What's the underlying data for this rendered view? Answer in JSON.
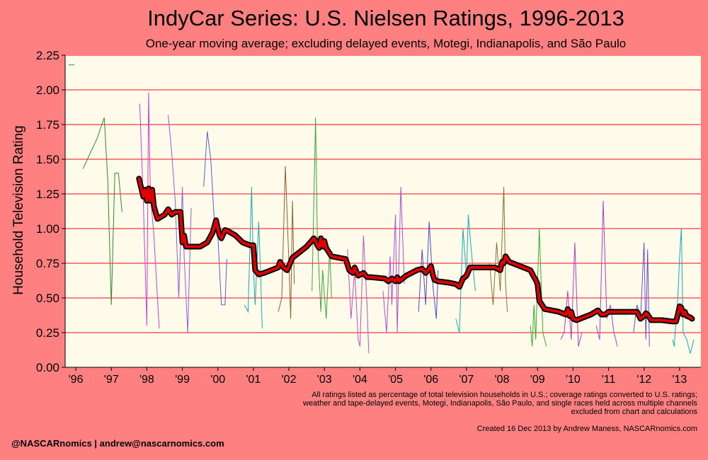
{
  "chart_data": {
    "type": "line",
    "title": "IndyCar Series: U.S. Nielsen Ratings, 1996-2013",
    "subtitle": "One-year moving average; excluding delayed events, Motegi, Indianapolis, and São Paulo",
    "ylabel": "Household Television Rating",
    "xlabel": "",
    "ylim": [
      0,
      2.25
    ],
    "xlim": [
      1995.7,
      2013.6
    ],
    "grid": true,
    "y_ticks": [
      "0.00",
      "0.25",
      "0.50",
      "0.75",
      "1.00",
      "1.25",
      "1.50",
      "1.75",
      "2.00",
      "2.25"
    ],
    "x_ticks": [
      {
        "x": 1996,
        "label": "'96"
      },
      {
        "x": 1997,
        "label": "'97"
      },
      {
        "x": 1998,
        "label": "'98"
      },
      {
        "x": 1999,
        "label": "'99"
      },
      {
        "x": 2000,
        "label": "'00"
      },
      {
        "x": 2001,
        "label": "'01"
      },
      {
        "x": 2002,
        "label": "'02"
      },
      {
        "x": 2003,
        "label": "'03"
      },
      {
        "x": 2004,
        "label": "'04"
      },
      {
        "x": 2005,
        "label": "'05"
      },
      {
        "x": 2006,
        "label": "'06"
      },
      {
        "x": 2007,
        "label": "'07"
      },
      {
        "x": 2008,
        "label": "'08"
      },
      {
        "x": 2009,
        "label": "'09"
      },
      {
        "x": 2010,
        "label": "'10"
      },
      {
        "x": 2011,
        "label": "'11"
      },
      {
        "x": 2012,
        "label": "'12"
      },
      {
        "x": 2013,
        "label": "'13"
      }
    ],
    "colors": {
      "moving_average": "#e00000",
      "moving_average_outline": "#000000",
      "gridline": "#ff8080",
      "plot_bg": "#fffbea"
    },
    "race_series": [
      {
        "color": "#2e8b2e",
        "x": [
          1996.2,
          1996.6,
          1996.8,
          1996.9,
          1997.0,
          1997.1,
          1997.2,
          1997.3
        ],
        "y": [
          1.43,
          1.65,
          1.8,
          1.35,
          0.45,
          1.4,
          1.4,
          1.12
        ]
      },
      {
        "color": "#d040d0",
        "x": [
          1997.8,
          1997.9,
          1998.0,
          1998.05,
          1998.1,
          1998.2,
          1998.3,
          1998.35
        ],
        "y": [
          1.9,
          1.2,
          0.3,
          1.98,
          1.25,
          0.95,
          0.5,
          0.28
        ]
      },
      {
        "color": "#9a5ad8",
        "x": [
          1998.6,
          1998.7,
          1998.8,
          1998.9,
          1999.0,
          1999.05,
          1999.15,
          1999.25
        ],
        "y": [
          1.82,
          1.55,
          1.2,
          0.5,
          1.3,
          0.8,
          0.25,
          1.15
        ]
      },
      {
        "color": "#5a5ad8",
        "x": [
          1999.6,
          1999.7,
          1999.8,
          1999.9,
          2000.0,
          2000.1,
          2000.2,
          2000.25
        ],
        "y": [
          1.3,
          1.7,
          1.5,
          1.05,
          0.95,
          0.45,
          0.45,
          0.78
        ]
      },
      {
        "color": "#10b0b0",
        "x": [
          2000.75,
          2000.85,
          2000.95,
          2001.0,
          2001.05,
          2001.15,
          2001.2,
          2001.25
        ],
        "y": [
          0.45,
          0.4,
          1.3,
          0.7,
          0.45,
          1.05,
          0.7,
          0.28
        ]
      },
      {
        "color": "#8a6030",
        "x": [
          2001.7,
          2001.8,
          2001.9,
          2002.0,
          2002.05,
          2002.1,
          2002.15
        ],
        "y": [
          0.4,
          0.5,
          1.45,
          0.75,
          0.35,
          1.2,
          0.6
        ]
      },
      {
        "color": "#38a838",
        "x": [
          2002.65,
          2002.75,
          2002.8,
          2002.9,
          2002.95,
          2003.05,
          2003.15,
          2003.2
        ],
        "y": [
          0.55,
          1.8,
          0.95,
          0.4,
          0.7,
          0.35,
          0.85,
          0.5
        ]
      },
      {
        "color": "#c050c0",
        "x": [
          2003.65,
          2003.75,
          2003.85,
          2003.95,
          2004.0,
          2004.1,
          2004.2,
          2004.25
        ],
        "y": [
          0.85,
          0.35,
          0.7,
          0.2,
          0.15,
          0.95,
          0.45,
          0.1
        ]
      },
      {
        "color": "#b050d0",
        "x": [
          2004.65,
          2004.75,
          2004.85,
          2004.9,
          2005.0,
          2005.05,
          2005.15,
          2005.25
        ],
        "y": [
          0.55,
          0.25,
          0.8,
          0.45,
          1.1,
          0.25,
          1.3,
          0.6
        ]
      },
      {
        "color": "#4a4ad0",
        "x": [
          2005.65,
          2005.75,
          2005.85,
          2005.95,
          2006.05,
          2006.15,
          2006.2
        ],
        "y": [
          0.4,
          0.85,
          0.45,
          1.05,
          0.6,
          0.35,
          0.7
        ]
      },
      {
        "color": "#10b0b0",
        "x": [
          2006.7,
          2006.8,
          2006.9,
          2007.0,
          2007.05,
          2007.15,
          2007.25
        ],
        "y": [
          0.35,
          0.25,
          1.0,
          0.65,
          1.1,
          0.8,
          0.55
        ]
      },
      {
        "color": "#8a7030",
        "x": [
          2007.65,
          2007.75,
          2007.85,
          2007.95,
          2008.05,
          2008.1,
          2008.15
        ],
        "y": [
          0.75,
          0.45,
          0.9,
          0.55,
          1.3,
          0.6,
          0.4
        ]
      },
      {
        "color": "#30b030",
        "x": [
          2008.8,
          2008.85,
          2008.9,
          2008.95,
          2009.05,
          2009.15,
          2009.25
        ],
        "y": [
          0.3,
          0.15,
          0.45,
          0.2,
          1.0,
          0.25,
          0.15
        ]
      },
      {
        "color": "#b040c0",
        "x": [
          2009.65,
          2009.75,
          2009.85,
          2009.95,
          2010.05,
          2010.15,
          2010.25
        ],
        "y": [
          0.2,
          0.25,
          0.55,
          0.2,
          0.9,
          0.15,
          0.25
        ]
      },
      {
        "color": "#b040c0",
        "x": [
          2010.65,
          2010.75,
          2010.85,
          2010.95,
          2011.05,
          2011.15,
          2011.25
        ],
        "y": [
          0.3,
          0.2,
          1.2,
          0.35,
          0.45,
          0.25,
          0.15
        ]
      },
      {
        "color": "#6050d0",
        "x": [
          2011.7,
          2011.8,
          2011.9,
          2012.0,
          2012.05,
          2012.1,
          2012.15
        ],
        "y": [
          0.25,
          0.45,
          0.35,
          0.9,
          0.2,
          0.85,
          0.15
        ]
      },
      {
        "color": "#10b0b0",
        "x": [
          2012.8,
          2012.85,
          2012.9,
          2012.95,
          2013.0,
          2013.05,
          2013.1,
          2013.2,
          2013.3,
          2013.4
        ],
        "y": [
          0.2,
          0.15,
          0.35,
          0.5,
          0.8,
          1.0,
          0.25,
          0.2,
          0.1,
          0.2
        ]
      }
    ],
    "moving_average": {
      "x": [
        1997.78,
        1997.9,
        1997.95,
        1998.0,
        1998.05,
        1998.1,
        1998.15,
        1998.2,
        1998.3,
        1998.5,
        1998.6,
        1998.7,
        1998.8,
        1998.95,
        1999.0,
        1999.05,
        1999.1,
        1999.2,
        1999.5,
        1999.7,
        1999.85,
        1999.95,
        2000.0,
        2000.05,
        2000.1,
        2000.2,
        2000.3,
        2000.5,
        2000.7,
        2000.9,
        2001.0,
        2001.05,
        2001.15,
        2001.3,
        2001.5,
        2001.7,
        2001.75,
        2001.85,
        2001.95,
        2002.0,
        2002.1,
        2002.3,
        2002.5,
        2002.6,
        2002.7,
        2002.75,
        2002.8,
        2002.85,
        2002.9,
        2002.95,
        2003.0,
        2003.05,
        2003.2,
        2003.6,
        2003.7,
        2003.8,
        2003.85,
        2003.95,
        2004.1,
        2004.2,
        2004.3,
        2004.7,
        2004.8,
        2004.9,
        2005.0,
        2005.05,
        2005.1,
        2005.3,
        2005.6,
        2005.75,
        2005.85,
        2005.95,
        2006.0,
        2006.05,
        2006.1,
        2006.2,
        2006.5,
        2006.7,
        2006.8,
        2006.9,
        2007.0,
        2007.1,
        2007.5,
        2007.8,
        2007.95,
        2008.0,
        2008.05,
        2008.1,
        2008.2,
        2008.6,
        2008.8,
        2008.9,
        2008.95,
        2009.0,
        2009.05,
        2009.1,
        2009.2,
        2009.4,
        2009.6,
        2009.8,
        2009.85,
        2009.9,
        2009.95,
        2010.0,
        2010.1,
        2010.3,
        2010.5,
        2010.7,
        2010.8,
        2010.9,
        2011.0,
        2011.5,
        2011.8,
        2011.9,
        2012.0,
        2012.05,
        2012.1,
        2012.2,
        2012.5,
        2012.8,
        2012.9,
        2012.95,
        2013.0,
        2013.05,
        2013.1,
        2013.15,
        2013.2,
        2013.3,
        2013.35
      ],
      "y": [
        1.36,
        1.23,
        1.28,
        1.2,
        1.29,
        1.2,
        1.28,
        1.16,
        1.07,
        1.1,
        1.14,
        1.1,
        1.12,
        1.12,
        0.9,
        0.95,
        0.87,
        0.87,
        0.87,
        0.9,
        0.97,
        1.06,
        1.0,
        0.95,
        0.93,
        0.99,
        0.98,
        0.95,
        0.9,
        0.88,
        0.88,
        0.7,
        0.67,
        0.68,
        0.7,
        0.72,
        0.76,
        0.72,
        0.7,
        0.73,
        0.79,
        0.83,
        0.87,
        0.9,
        0.93,
        0.91,
        0.88,
        0.86,
        0.93,
        0.87,
        0.91,
        0.86,
        0.8,
        0.78,
        0.7,
        0.68,
        0.72,
        0.66,
        0.68,
        0.65,
        0.65,
        0.64,
        0.62,
        0.64,
        0.62,
        0.65,
        0.62,
        0.66,
        0.7,
        0.71,
        0.68,
        0.71,
        0.73,
        0.67,
        0.63,
        0.62,
        0.61,
        0.6,
        0.58,
        0.64,
        0.66,
        0.72,
        0.72,
        0.72,
        0.7,
        0.76,
        0.75,
        0.8,
        0.76,
        0.72,
        0.7,
        0.65,
        0.63,
        0.6,
        0.48,
        0.46,
        0.42,
        0.41,
        0.4,
        0.38,
        0.42,
        0.37,
        0.4,
        0.35,
        0.34,
        0.36,
        0.38,
        0.41,
        0.38,
        0.38,
        0.4,
        0.4,
        0.4,
        0.35,
        0.37,
        0.39,
        0.38,
        0.34,
        0.34,
        0.33,
        0.33,
        0.38,
        0.44,
        0.43,
        0.38,
        0.4,
        0.37,
        0.36,
        0.35
      ]
    },
    "annotation_stub": {
      "x": 1995.8,
      "y": 2.18
    }
  },
  "footnote": "All ratings listed as percentage of total television households in U.S.; coverage ratings converted to U.S. ratings; weather and tape-delayed events, Motegi, Indianapolis, São Paulo, and single races held across multiple channels excluded from chart and calculations",
  "credit": "Created 16 Dec 2013 by Andrew Maness, NASCARnomics.com",
  "handle": "@NASCARnomics | andrew@nascarnomics.com"
}
